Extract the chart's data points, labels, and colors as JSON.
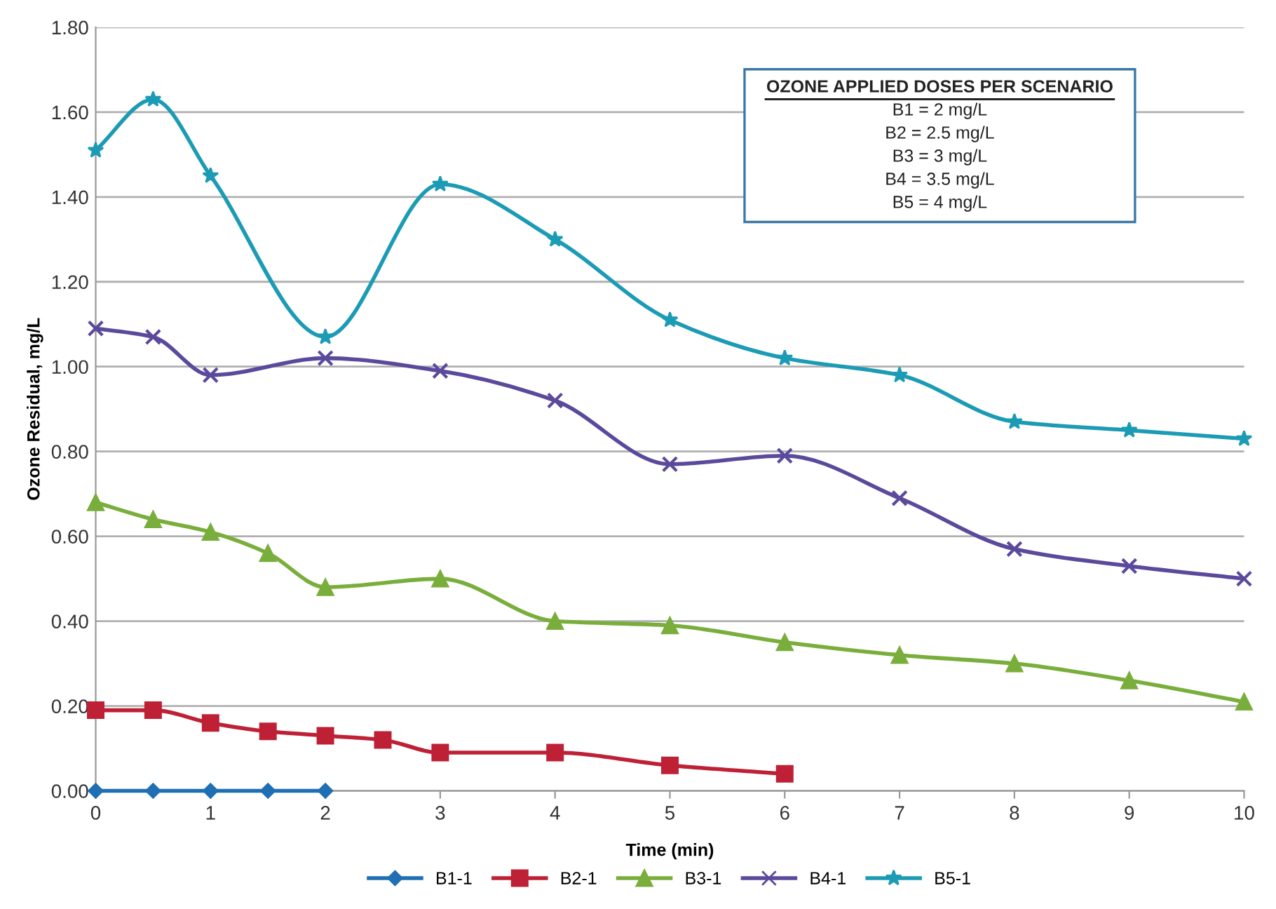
{
  "chart_data": {
    "type": "line",
    "xlabel": "Time (min)",
    "ylabel": "Ozone Residual, mg/L",
    "xlim": [
      0,
      10
    ],
    "xticks": [
      0,
      1,
      2,
      3,
      4,
      5,
      6,
      7,
      8,
      9,
      10
    ],
    "ylim": [
      0,
      1.8
    ],
    "yticks": [
      {
        "value": 0,
        "label": "0.00"
      },
      {
        "value": 0.2,
        "label": "0.20"
      },
      {
        "value": 0.4,
        "label": "0.40"
      },
      {
        "value": 0.6,
        "label": "0.60"
      },
      {
        "value": 0.8,
        "label": "0.80"
      },
      {
        "value": 1.0,
        "label": "1.00"
      },
      {
        "value": 1.2,
        "label": "1.20"
      },
      {
        "value": 1.4,
        "label": "1.40"
      },
      {
        "value": 1.6,
        "label": "1.60"
      },
      {
        "value": 1.8,
        "label": "1.80"
      }
    ],
    "grid": "y",
    "legend": "bottom",
    "line_style": "solid",
    "annotations": [
      "OZONE APPLIED DOSES PER SCENARIO",
      "B1 = 2 mg/L",
      "B2 = 2.5 mg/L",
      "B3 = 3 mg/L",
      "B4 = 3.5 mg/L",
      "B5 = 4 mg/L"
    ],
    "series": [
      {
        "name": "B1-1",
        "color": "#1f6fb4",
        "marker": "diamond",
        "x": [
          0,
          0.5,
          1,
          1.5,
          2
        ],
        "values": [
          0,
          0,
          0,
          0,
          0
        ]
      },
      {
        "name": "B2-1",
        "color": "#be2035",
        "marker": "square",
        "x": [
          0,
          0.5,
          1,
          1.5,
          2,
          2.5,
          3,
          4,
          5,
          6
        ],
        "values": [
          0.19,
          0.19,
          0.16,
          0.14,
          0.13,
          0.12,
          0.09,
          0.09,
          0.06,
          0.04
        ]
      },
      {
        "name": "B3-1",
        "color": "#7aae3c",
        "marker": "triangle",
        "x": [
          0,
          0.5,
          1,
          1.5,
          2,
          3,
          4,
          5,
          6,
          7,
          8,
          9,
          10
        ],
        "values": [
          0.68,
          0.64,
          0.61,
          0.56,
          0.48,
          0.5,
          0.4,
          0.39,
          0.35,
          0.32,
          0.3,
          0.26,
          0.21
        ]
      },
      {
        "name": "B4-1",
        "color": "#5b4a9c",
        "marker": "cross",
        "x": [
          0,
          0.5,
          1,
          2,
          3,
          4,
          5,
          6,
          7,
          8,
          9,
          10
        ],
        "values": [
          1.09,
          1.07,
          0.98,
          1.02,
          0.99,
          0.92,
          0.77,
          0.79,
          0.69,
          0.57,
          0.53,
          0.5
        ]
      },
      {
        "name": "B5-1",
        "color": "#1c9bb5",
        "marker": "star",
        "x": [
          0,
          0.5,
          1,
          2,
          3,
          4,
          5,
          6,
          7,
          8,
          9,
          10
        ],
        "values": [
          1.51,
          1.63,
          1.45,
          1.07,
          1.43,
          1.3,
          1.11,
          1.02,
          0.98,
          0.87,
          0.85,
          0.83
        ]
      }
    ]
  }
}
